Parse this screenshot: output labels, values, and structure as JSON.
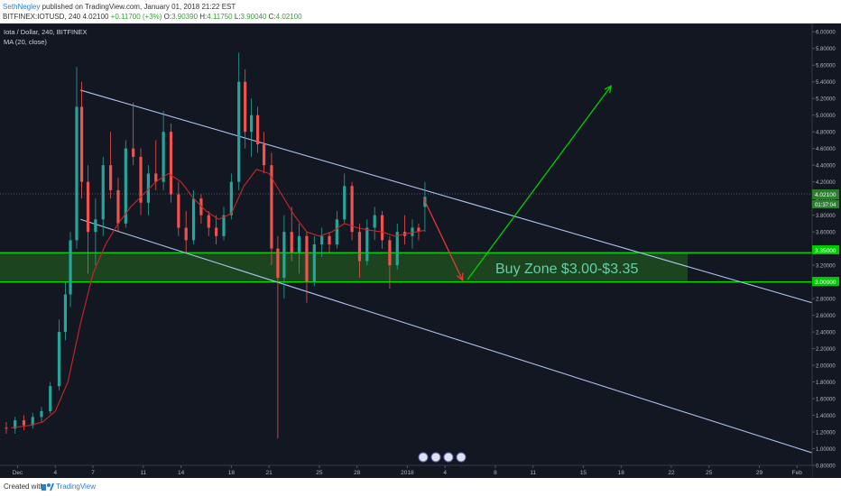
{
  "header": {
    "author": "SethNegley",
    "publish_text": "published on TradingView.com, January 01, 2018 21:22 EST",
    "symbol_line": "BITFINEX:IOTUSD, 240",
    "last": "4.02100",
    "change": "+0.11700 (+3%)",
    "o_label": "O:",
    "o_value": "3.90390",
    "h_label": "H:",
    "h_value": "4.11750",
    "l_label": "L:",
    "l_value": "3.90040",
    "c_label": "C:",
    "c_value": "4.02100"
  },
  "legend": {
    "title": "Iota / Dollar, 240, BITFINEX",
    "indicator": "MA (20, close)"
  },
  "annotations": {
    "buy_zone_label": "Buy Zone $3.00-$3.35",
    "price_tag": "4.02100",
    "countdown_tag": "01:37:04",
    "upper_zone_tag": "3.35000",
    "lower_zone_tag": "3.00000"
  },
  "footer": {
    "created_text": "Created with",
    "brand": "TradingView"
  },
  "colors": {
    "background": "#131722",
    "up_candle": "#26a69a",
    "down_candle": "#ef5350",
    "ma_line": "#c62828",
    "channel_line": "#a9c4ee",
    "zone_line": "#00e600",
    "zone_fill": "#1e4d1e",
    "green_arrow": "#00d000",
    "red_arrow": "#e53935"
  },
  "chart_data": {
    "type": "candlestick",
    "symbol": "IOTUSD",
    "interval": "240",
    "ylim": [
      0.8,
      6.1
    ],
    "y_ticks": [
      "6.00000",
      "5.80000",
      "5.60000",
      "5.40000",
      "5.20000",
      "5.00000",
      "4.80000",
      "4.60000",
      "4.40000",
      "4.20000",
      "4.00000",
      "3.80000",
      "3.60000",
      "3.40000",
      "3.20000",
      "3.00000",
      "2.80000",
      "2.60000",
      "2.40000",
      "2.20000",
      "2.00000",
      "1.80000",
      "1.60000",
      "1.40000",
      "1.20000",
      "1.00000",
      "0.80000"
    ],
    "x_ticks": [
      "Dec",
      "4",
      "7",
      "11",
      "14",
      "18",
      "21",
      "25",
      "28",
      "2018",
      "4",
      "8",
      "11",
      "15",
      "18",
      "22",
      "25",
      "29",
      "Feb"
    ],
    "x_tick_days": [
      0,
      3,
      6,
      10,
      13,
      17,
      20,
      24,
      27,
      31,
      34,
      38,
      41,
      45,
      48,
      52,
      55,
      59,
      62
    ],
    "x_range_days": [
      -1.4,
      63.2
    ],
    "last_price": 4.021,
    "ohlc": [
      {
        "d": -0.9,
        "o": 1.25,
        "h": 1.32,
        "l": 1.18,
        "c": 1.24
      },
      {
        "d": -0.2,
        "o": 1.24,
        "h": 1.38,
        "l": 1.18,
        "c": 1.34
      },
      {
        "d": 0.5,
        "o": 1.34,
        "h": 1.4,
        "l": 1.22,
        "c": 1.28
      },
      {
        "d": 1.2,
        "o": 1.28,
        "h": 1.43,
        "l": 1.24,
        "c": 1.38
      },
      {
        "d": 1.9,
        "o": 1.38,
        "h": 1.5,
        "l": 1.32,
        "c": 1.45
      },
      {
        "d": 2.6,
        "o": 1.45,
        "h": 1.8,
        "l": 1.42,
        "c": 1.75
      },
      {
        "d": 3.3,
        "o": 1.75,
        "h": 2.55,
        "l": 1.7,
        "c": 2.4
      },
      {
        "d": 3.8,
        "o": 2.4,
        "h": 3.0,
        "l": 2.3,
        "c": 2.85
      },
      {
        "d": 4.2,
        "o": 2.85,
        "h": 3.6,
        "l": 2.7,
        "c": 3.5
      },
      {
        "d": 4.7,
        "o": 3.5,
        "h": 5.58,
        "l": 3.4,
        "c": 5.1
      },
      {
        "d": 5.1,
        "o": 5.1,
        "h": 5.4,
        "l": 4.0,
        "c": 4.2
      },
      {
        "d": 5.6,
        "o": 4.2,
        "h": 4.4,
        "l": 3.1,
        "c": 3.6
      },
      {
        "d": 6.2,
        "o": 3.6,
        "h": 4.0,
        "l": 3.2,
        "c": 3.75
      },
      {
        "d": 6.8,
        "o": 3.75,
        "h": 4.5,
        "l": 3.55,
        "c": 4.4
      },
      {
        "d": 7.4,
        "o": 4.4,
        "h": 4.8,
        "l": 4.0,
        "c": 4.1
      },
      {
        "d": 8.0,
        "o": 4.1,
        "h": 4.25,
        "l": 3.6,
        "c": 3.7
      },
      {
        "d": 8.6,
        "o": 3.7,
        "h": 4.7,
        "l": 3.65,
        "c": 4.6
      },
      {
        "d": 9.2,
        "o": 4.6,
        "h": 5.15,
        "l": 4.4,
        "c": 4.5
      },
      {
        "d": 9.8,
        "o": 4.5,
        "h": 4.6,
        "l": 3.8,
        "c": 3.95
      },
      {
        "d": 10.4,
        "o": 3.95,
        "h": 4.4,
        "l": 3.8,
        "c": 4.3
      },
      {
        "d": 11.0,
        "o": 4.3,
        "h": 4.7,
        "l": 4.1,
        "c": 4.2
      },
      {
        "d": 11.6,
        "o": 4.2,
        "h": 5.05,
        "l": 4.1,
        "c": 4.8
      },
      {
        "d": 12.2,
        "o": 4.8,
        "h": 4.9,
        "l": 3.95,
        "c": 4.05
      },
      {
        "d": 12.8,
        "o": 4.05,
        "h": 4.2,
        "l": 3.55,
        "c": 3.65
      },
      {
        "d": 13.4,
        "o": 3.65,
        "h": 3.85,
        "l": 3.35,
        "c": 3.5
      },
      {
        "d": 14.0,
        "o": 3.5,
        "h": 4.1,
        "l": 3.45,
        "c": 4.0
      },
      {
        "d": 14.6,
        "o": 4.0,
        "h": 4.05,
        "l": 3.7,
        "c": 3.8
      },
      {
        "d": 15.2,
        "o": 3.8,
        "h": 3.85,
        "l": 3.55,
        "c": 3.65
      },
      {
        "d": 15.8,
        "o": 3.65,
        "h": 3.8,
        "l": 3.45,
        "c": 3.55
      },
      {
        "d": 16.4,
        "o": 3.55,
        "h": 3.9,
        "l": 3.5,
        "c": 3.8
      },
      {
        "d": 17.0,
        "o": 3.8,
        "h": 4.3,
        "l": 3.75,
        "c": 4.2
      },
      {
        "d": 17.6,
        "o": 4.2,
        "h": 5.75,
        "l": 4.1,
        "c": 5.4
      },
      {
        "d": 18.1,
        "o": 5.4,
        "h": 5.55,
        "l": 4.6,
        "c": 4.8
      },
      {
        "d": 18.6,
        "o": 4.8,
        "h": 5.2,
        "l": 4.5,
        "c": 5.0
      },
      {
        "d": 19.1,
        "o": 5.0,
        "h": 5.1,
        "l": 4.55,
        "c": 4.65
      },
      {
        "d": 19.6,
        "o": 4.65,
        "h": 4.8,
        "l": 4.3,
        "c": 4.4
      },
      {
        "d": 20.2,
        "o": 4.4,
        "h": 4.55,
        "l": 3.2,
        "c": 3.4
      },
      {
        "d": 20.7,
        "o": 3.4,
        "h": 3.55,
        "l": 1.12,
        "c": 3.05
      },
      {
        "d": 21.2,
        "o": 3.05,
        "h": 3.8,
        "l": 2.8,
        "c": 3.6
      },
      {
        "d": 21.8,
        "o": 3.6,
        "h": 3.9,
        "l": 3.25,
        "c": 3.35
      },
      {
        "d": 22.4,
        "o": 3.35,
        "h": 3.7,
        "l": 3.1,
        "c": 3.55
      },
      {
        "d": 23.0,
        "o": 3.55,
        "h": 3.6,
        "l": 2.75,
        "c": 3.0
      },
      {
        "d": 23.6,
        "o": 3.0,
        "h": 3.55,
        "l": 2.95,
        "c": 3.45
      },
      {
        "d": 24.2,
        "o": 3.45,
        "h": 3.65,
        "l": 3.3,
        "c": 3.55
      },
      {
        "d": 24.8,
        "o": 3.55,
        "h": 3.6,
        "l": 3.35,
        "c": 3.45
      },
      {
        "d": 25.4,
        "o": 3.45,
        "h": 3.85,
        "l": 3.4,
        "c": 3.75
      },
      {
        "d": 26.0,
        "o": 3.75,
        "h": 4.3,
        "l": 3.7,
        "c": 4.15
      },
      {
        "d": 26.6,
        "o": 4.15,
        "h": 4.2,
        "l": 3.5,
        "c": 3.6
      },
      {
        "d": 27.2,
        "o": 3.6,
        "h": 3.7,
        "l": 3.05,
        "c": 3.25
      },
      {
        "d": 27.8,
        "o": 3.25,
        "h": 3.75,
        "l": 3.2,
        "c": 3.65
      },
      {
        "d": 28.4,
        "o": 3.65,
        "h": 3.9,
        "l": 3.5,
        "c": 3.8
      },
      {
        "d": 29.0,
        "o": 3.8,
        "h": 3.85,
        "l": 3.4,
        "c": 3.5
      },
      {
        "d": 29.6,
        "o": 3.5,
        "h": 3.55,
        "l": 2.92,
        "c": 3.2
      },
      {
        "d": 30.2,
        "o": 3.2,
        "h": 3.7,
        "l": 3.15,
        "c": 3.6
      },
      {
        "d": 30.8,
        "o": 3.6,
        "h": 3.8,
        "l": 3.45,
        "c": 3.55
      },
      {
        "d": 31.4,
        "o": 3.55,
        "h": 3.75,
        "l": 3.4,
        "c": 3.65
      },
      {
        "d": 31.9,
        "o": 3.65,
        "h": 3.7,
        "l": 3.5,
        "c": 3.6
      },
      {
        "d": 32.4,
        "o": 3.9,
        "h": 4.2,
        "l": 3.6,
        "c": 4.02
      }
    ],
    "ma": {
      "name": "MA (20, close)",
      "points": [
        [
          -0.5,
          1.25
        ],
        [
          1,
          1.28
        ],
        [
          2,
          1.32
        ],
        [
          3,
          1.45
        ],
        [
          4,
          1.8
        ],
        [
          5,
          2.5
        ],
        [
          6,
          3.1
        ],
        [
          7,
          3.45
        ],
        [
          8,
          3.7
        ],
        [
          9,
          3.9
        ],
        [
          10,
          4.05
        ],
        [
          11,
          4.2
        ],
        [
          12,
          4.3
        ],
        [
          13,
          4.2
        ],
        [
          14,
          4.0
        ],
        [
          15,
          3.85
        ],
        [
          16,
          3.75
        ],
        [
          17,
          3.82
        ],
        [
          18,
          4.15
        ],
        [
          19,
          4.35
        ],
        [
          20,
          4.3
        ],
        [
          21,
          4.05
        ],
        [
          22,
          3.8
        ],
        [
          23,
          3.6
        ],
        [
          24,
          3.55
        ],
        [
          25,
          3.6
        ],
        [
          26,
          3.7
        ],
        [
          27,
          3.65
        ],
        [
          28,
          3.62
        ],
        [
          29,
          3.6
        ],
        [
          30,
          3.55
        ],
        [
          31,
          3.58
        ],
        [
          32.4,
          3.62
        ]
      ]
    },
    "channel_upper": [
      [
        5,
        5.3
      ],
      [
        63.2,
        2.75
      ]
    ],
    "channel_lower": [
      [
        5,
        3.75
      ],
      [
        63.2,
        0.95
      ]
    ],
    "buy_zone": {
      "top": 3.35,
      "bottom": 3.0,
      "d_start": -1.4,
      "d_end": 53.3
    },
    "arrow_down": {
      "from": [
        32.3,
        4.0
      ],
      "to": [
        35.4,
        3.02
      ]
    },
    "arrow_up": {
      "from": [
        35.8,
        3.03
      ],
      "to": [
        47.2,
        5.35
      ]
    }
  }
}
